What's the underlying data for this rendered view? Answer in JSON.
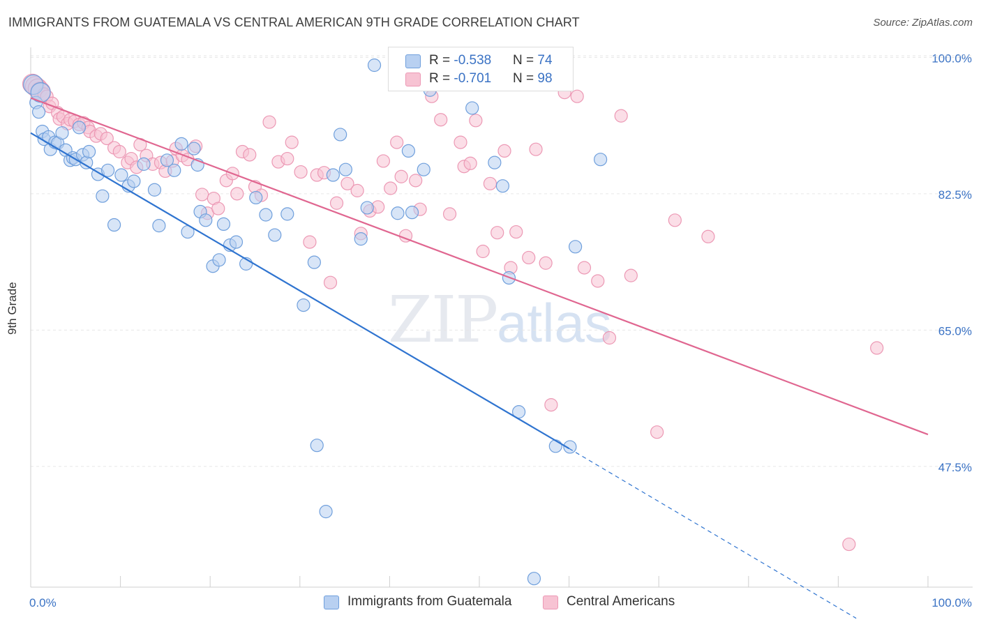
{
  "title": "IMMIGRANTS FROM GUATEMALA VS CENTRAL AMERICAN 9TH GRADE CORRELATION CHART",
  "source": "Source: ZipAtlas.com",
  "watermark": {
    "zip": "ZIP",
    "atlas": "atlas"
  },
  "legend": {
    "rows": [
      {
        "r_label": "R = ",
        "r_value": "-0.538",
        "n_label": "N = ",
        "n_value": "74"
      },
      {
        "r_label": "R = ",
        "r_value": "-0.701",
        "n_label": "N = ",
        "n_value": "98"
      }
    ]
  },
  "colors": {
    "blue_fill": "#b8d0f1",
    "blue_stroke": "#6f9fdc",
    "blue_line": "#2f74d0",
    "pink_fill": "#f7c3d3",
    "pink_stroke": "#ec98b4",
    "pink_line": "#e06690",
    "tick_label": "#3a72c4",
    "grid": "#e6e6e6"
  },
  "chart_data": {
    "type": "scatter",
    "ylabel": "9th Grade",
    "xlim": [
      0,
      100
    ],
    "ylim": [
      32,
      102
    ],
    "x_tick_labels": [
      "0.0%",
      "100.0%"
    ],
    "y_ticks": [
      {
        "value": 100,
        "label": "100.0%"
      },
      {
        "value": 82.5,
        "label": "82.5%"
      },
      {
        "value": 65,
        "label": "65.0%"
      },
      {
        "value": 47.5,
        "label": "47.5%"
      }
    ],
    "grid": true,
    "series": [
      {
        "name": "Immigrants from Guatemala",
        "trend": {
          "x0": 0,
          "y0": 90.3,
          "x1": 60,
          "y1": 49.8,
          "dash_to_x": 92,
          "dash_to_y": 28.0
        },
        "points": [
          [
            0.3,
            96.5
          ],
          [
            0.6,
            94.2
          ],
          [
            0.9,
            93.0
          ],
          [
            1.1,
            95.5
          ],
          [
            1.3,
            90.5
          ],
          [
            1.5,
            89.5
          ],
          [
            2.0,
            89.8
          ],
          [
            2.2,
            88.2
          ],
          [
            2.7,
            89.1
          ],
          [
            3.0,
            89.0
          ],
          [
            3.5,
            90.3
          ],
          [
            3.9,
            88.1
          ],
          [
            4.4,
            86.8
          ],
          [
            4.7,
            87.1
          ],
          [
            5.0,
            86.9
          ],
          [
            5.4,
            91.0
          ],
          [
            5.8,
            87.5
          ],
          [
            6.2,
            86.5
          ],
          [
            6.5,
            87.9
          ],
          [
            7.5,
            85.0
          ],
          [
            8.0,
            82.2
          ],
          [
            8.6,
            85.5
          ],
          [
            9.3,
            78.5
          ],
          [
            10.1,
            84.9
          ],
          [
            10.9,
            83.5
          ],
          [
            11.5,
            84.1
          ],
          [
            12.6,
            86.3
          ],
          [
            13.8,
            83.0
          ],
          [
            14.3,
            78.4
          ],
          [
            15.2,
            86.8
          ],
          [
            16.0,
            85.5
          ],
          [
            16.8,
            88.9
          ],
          [
            17.5,
            77.6
          ],
          [
            18.2,
            88.3
          ],
          [
            18.6,
            86.2
          ],
          [
            18.9,
            80.2
          ],
          [
            19.5,
            79.1
          ],
          [
            20.3,
            73.2
          ],
          [
            21.0,
            74.0
          ],
          [
            21.5,
            78.6
          ],
          [
            22.2,
            75.9
          ],
          [
            22.9,
            76.3
          ],
          [
            24.0,
            73.5
          ],
          [
            25.1,
            82.0
          ],
          [
            26.2,
            79.8
          ],
          [
            27.2,
            77.2
          ],
          [
            28.6,
            79.9
          ],
          [
            30.4,
            68.2
          ],
          [
            31.6,
            73.7
          ],
          [
            31.9,
            50.2
          ],
          [
            32.9,
            41.7
          ],
          [
            33.7,
            84.9
          ],
          [
            34.5,
            90.1
          ],
          [
            35.1,
            85.6
          ],
          [
            36.8,
            76.7
          ],
          [
            37.5,
            80.7
          ],
          [
            38.3,
            99.0
          ],
          [
            40.9,
            80.0
          ],
          [
            42.1,
            88.0
          ],
          [
            42.5,
            80.1
          ],
          [
            43.8,
            85.6
          ],
          [
            44.5,
            95.8
          ],
          [
            47.1,
            100.2
          ],
          [
            48.6,
            96.5
          ],
          [
            49.2,
            93.5
          ],
          [
            51.7,
            86.5
          ],
          [
            52.6,
            83.5
          ],
          [
            53.3,
            71.7
          ],
          [
            54.4,
            54.5
          ],
          [
            56.1,
            33.1
          ],
          [
            58.5,
            50.1
          ],
          [
            60.1,
            50.0
          ],
          [
            60.7,
            75.7
          ],
          [
            63.5,
            86.9
          ]
        ]
      },
      {
        "name": "Central Americans",
        "trend": {
          "x0": 0,
          "y0": 94.8,
          "x1": 100,
          "y1": 51.6
        },
        "points": [
          [
            0.2,
            96.6
          ],
          [
            0.5,
            96.3
          ],
          [
            0.8,
            96.0
          ],
          [
            1.1,
            95.6
          ],
          [
            1.5,
            95.3
          ],
          [
            1.8,
            95.0
          ],
          [
            2.1,
            93.7
          ],
          [
            2.4,
            94.1
          ],
          [
            3.0,
            92.9
          ],
          [
            3.2,
            92.1
          ],
          [
            3.6,
            92.4
          ],
          [
            4.1,
            91.5
          ],
          [
            4.4,
            92.0
          ],
          [
            4.9,
            91.8
          ],
          [
            5.4,
            91.4
          ],
          [
            5.9,
            91.6
          ],
          [
            6.4,
            91.0
          ],
          [
            6.6,
            90.5
          ],
          [
            7.3,
            89.9
          ],
          [
            7.8,
            90.2
          ],
          [
            8.5,
            89.6
          ],
          [
            9.3,
            88.4
          ],
          [
            9.9,
            87.9
          ],
          [
            10.8,
            86.5
          ],
          [
            11.2,
            87.0
          ],
          [
            11.8,
            85.9
          ],
          [
            12.2,
            88.8
          ],
          [
            12.9,
            87.4
          ],
          [
            13.6,
            86.3
          ],
          [
            14.5,
            86.5
          ],
          [
            15.0,
            85.4
          ],
          [
            15.8,
            86.7
          ],
          [
            16.2,
            88.3
          ],
          [
            16.9,
            87.4
          ],
          [
            17.5,
            86.9
          ],
          [
            18.4,
            88.6
          ],
          [
            19.1,
            82.4
          ],
          [
            19.7,
            80.0
          ],
          [
            20.4,
            81.9
          ],
          [
            20.9,
            80.6
          ],
          [
            21.8,
            84.2
          ],
          [
            22.5,
            85.1
          ],
          [
            23.0,
            82.5
          ],
          [
            23.6,
            87.9
          ],
          [
            24.4,
            87.5
          ],
          [
            25.0,
            83.4
          ],
          [
            25.7,
            82.3
          ],
          [
            26.6,
            91.7
          ],
          [
            27.6,
            86.6
          ],
          [
            28.6,
            87.0
          ],
          [
            29.1,
            89.1
          ],
          [
            30.1,
            85.3
          ],
          [
            31.1,
            76.3
          ],
          [
            31.9,
            84.9
          ],
          [
            32.7,
            85.2
          ],
          [
            33.4,
            71.1
          ],
          [
            34.1,
            81.3
          ],
          [
            35.3,
            83.8
          ],
          [
            36.4,
            82.9
          ],
          [
            36.8,
            77.4
          ],
          [
            37.8,
            80.3
          ],
          [
            38.7,
            80.8
          ],
          [
            39.3,
            86.7
          ],
          [
            40.1,
            83.2
          ],
          [
            40.8,
            89.1
          ],
          [
            41.3,
            84.7
          ],
          [
            41.8,
            77.1
          ],
          [
            42.9,
            84.2
          ],
          [
            43.4,
            80.5
          ],
          [
            44.7,
            95.0
          ],
          [
            45.7,
            92.0
          ],
          [
            46.7,
            79.9
          ],
          [
            47.9,
            89.1
          ],
          [
            48.3,
            86.0
          ],
          [
            49.0,
            86.4
          ],
          [
            49.6,
            91.9
          ],
          [
            50.4,
            75.1
          ],
          [
            51.2,
            83.8
          ],
          [
            52.0,
            77.5
          ],
          [
            52.8,
            88.0
          ],
          [
            53.5,
            73.0
          ],
          [
            54.1,
            77.6
          ],
          [
            55.5,
            74.3
          ],
          [
            56.3,
            88.2
          ],
          [
            57.4,
            73.6
          ],
          [
            58.0,
            55.4
          ],
          [
            59.5,
            95.5
          ],
          [
            60.9,
            95.0
          ],
          [
            61.7,
            73.0
          ],
          [
            63.2,
            71.3
          ],
          [
            64.5,
            64.0
          ],
          [
            65.8,
            92.5
          ],
          [
            66.9,
            72.0
          ],
          [
            69.8,
            51.9
          ],
          [
            71.8,
            79.1
          ],
          [
            75.5,
            77.0
          ],
          [
            91.2,
            37.5
          ],
          [
            94.3,
            62.7
          ]
        ]
      }
    ]
  },
  "bottom_legend": [
    {
      "label": "Immigrants from Guatemala"
    },
    {
      "label": "Central Americans"
    }
  ]
}
